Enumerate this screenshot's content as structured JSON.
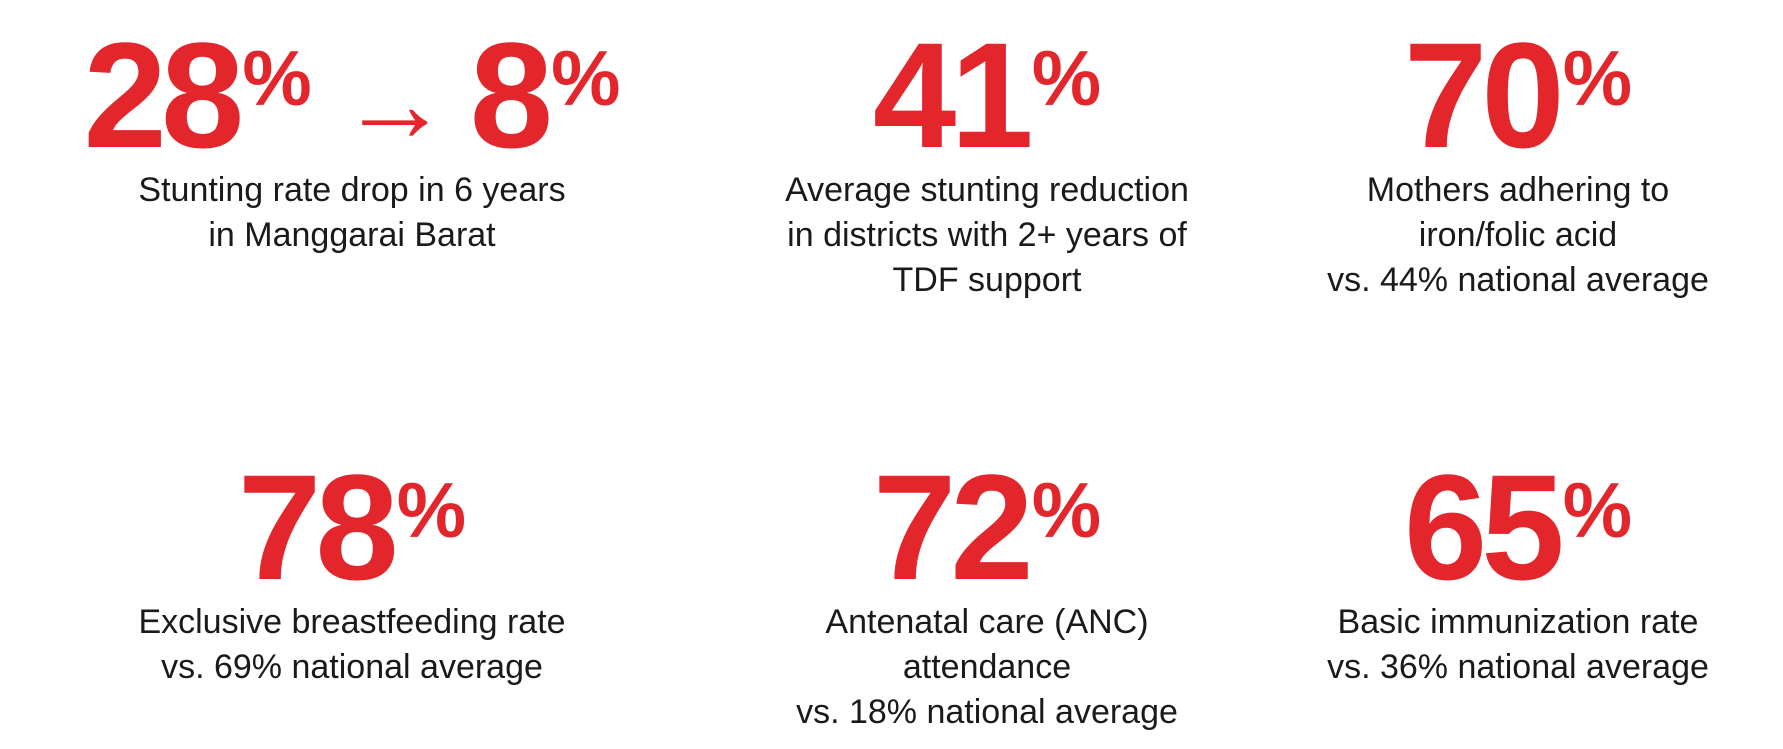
{
  "stats": [
    {
      "figure": [
        {
          "text": "28",
          "style": "big"
        },
        {
          "text": "%",
          "style": "sup"
        },
        {
          "text": "→",
          "style": "arrow"
        },
        {
          "text": "8",
          "style": "big"
        },
        {
          "text": "%",
          "style": "sup"
        }
      ],
      "lines": [
        "Stunting rate drop in 6 years",
        "in Manggarai Barat"
      ]
    },
    {
      "figure": [
        {
          "text": "41",
          "style": "big"
        },
        {
          "text": "%",
          "style": "sup"
        }
      ],
      "lines": [
        "Average stunting reduction",
        "in districts with 2+ years of",
        "TDF support"
      ]
    },
    {
      "figure": [
        {
          "text": "70",
          "style": "big"
        },
        {
          "text": "%",
          "style": "sup"
        }
      ],
      "lines": [
        "Mothers adhering to",
        "iron/folic acid",
        "vs. 44% national average"
      ]
    },
    {
      "figure": [
        {
          "text": "78",
          "style": "big"
        },
        {
          "text": "%",
          "style": "sup"
        }
      ],
      "lines": [
        "Exclusive breastfeeding rate",
        "vs. 69% national average"
      ]
    },
    {
      "figure": [
        {
          "text": "72",
          "style": "big"
        },
        {
          "text": "%",
          "style": "sup"
        }
      ],
      "lines": [
        "Antenatal care (ANC)",
        "attendance",
        "vs. 18% national average"
      ]
    },
    {
      "figure": [
        {
          "text": "65",
          "style": "big"
        },
        {
          "text": "%",
          "style": "sup"
        }
      ],
      "lines": [
        "Basic immunization rate",
        "vs. 36% national average"
      ]
    }
  ]
}
